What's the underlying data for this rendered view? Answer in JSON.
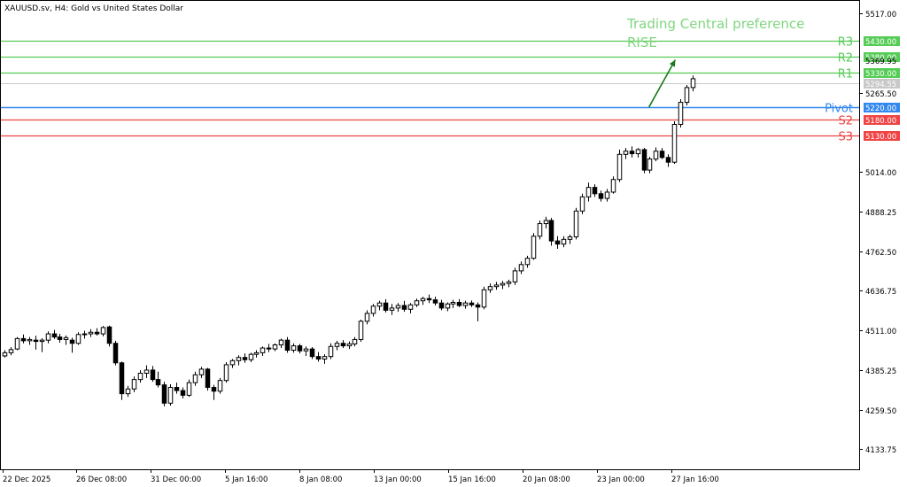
{
  "header": {
    "symbol_title": "XAUUSD.sv, H4:  Gold vs United States Dollar"
  },
  "annotation": {
    "line1": "Trading Central preference",
    "line2": "RISE",
    "color": "#7ed67e"
  },
  "colors": {
    "resistance": "#55cc55",
    "pivot": "#3388ee",
    "support": "#ee4444",
    "price_line": "#c8c8c8",
    "candle": "#000000",
    "arrow": "#1a7a1a"
  },
  "chart_data": {
    "type": "candlestick",
    "title": "XAUUSD.sv, H4:  Gold vs United States Dollar",
    "ylim": [
      4070,
      5560
    ],
    "y_ticks": [
      "5517.00",
      "5265.50",
      "5014.00",
      "4888.25",
      "4762.50",
      "4636.75",
      "4511.00",
      "4385.25",
      "4259.50",
      "4133.75"
    ],
    "x_ticks": [
      "22 Dec 2025",
      "26 Dec 08:00",
      "31 Dec 00:00",
      "5 Jan 16:00",
      "8 Jan 08:00",
      "13 Jan 00:00",
      "15 Jan 16:00",
      "20 Jan 08:00",
      "23 Jan 00:00",
      "27 Jan 16:00"
    ],
    "levels": [
      {
        "name": "R3",
        "value": 5430.0,
        "label": "5430.00",
        "kind": "resistance"
      },
      {
        "name": "R2",
        "value": 5380.0,
        "label": "5380.00",
        "kind": "resistance"
      },
      {
        "name": "R1",
        "value": 5330.0,
        "label": "5330.00",
        "kind": "resistance"
      },
      {
        "name": "Pivot",
        "value": 5220.0,
        "label": "5220.00",
        "kind": "pivot"
      },
      {
        "name": "S2",
        "value": 5180.0,
        "label": "5180.00",
        "kind": "support"
      },
      {
        "name": "S3",
        "value": 5130.0,
        "label": "5130.00",
        "kind": "support"
      }
    ],
    "current_price": {
      "value": 5294.55,
      "label": "5294.55"
    },
    "partial_tick": {
      "value": 5369.95,
      "label": "5369.95"
    },
    "arrow": {
      "from": {
        "candle": 101,
        "price": 5220
      },
      "to": {
        "candle": 106,
        "price": 5370
      }
    },
    "candles": [
      {
        "o": 4430,
        "h": 4448,
        "l": 4425,
        "c": 4440
      },
      {
        "o": 4440,
        "h": 4458,
        "l": 4432,
        "c": 4450
      },
      {
        "o": 4452,
        "h": 4490,
        "l": 4448,
        "c": 4485
      },
      {
        "o": 4485,
        "h": 4498,
        "l": 4470,
        "c": 4478
      },
      {
        "o": 4478,
        "h": 4490,
        "l": 4465,
        "c": 4482
      },
      {
        "o": 4480,
        "h": 4494,
        "l": 4450,
        "c": 4476
      },
      {
        "o": 4476,
        "h": 4486,
        "l": 4442,
        "c": 4480
      },
      {
        "o": 4480,
        "h": 4508,
        "l": 4470,
        "c": 4500
      },
      {
        "o": 4500,
        "h": 4512,
        "l": 4484,
        "c": 4490
      },
      {
        "o": 4490,
        "h": 4500,
        "l": 4472,
        "c": 4482
      },
      {
        "o": 4482,
        "h": 4495,
        "l": 4465,
        "c": 4488
      },
      {
        "o": 4480,
        "h": 4488,
        "l": 4440,
        "c": 4470
      },
      {
        "o": 4470,
        "h": 4505,
        "l": 4465,
        "c": 4498
      },
      {
        "o": 4498,
        "h": 4510,
        "l": 4485,
        "c": 4500
      },
      {
        "o": 4500,
        "h": 4515,
        "l": 4490,
        "c": 4505
      },
      {
        "o": 4505,
        "h": 4518,
        "l": 4495,
        "c": 4500
      },
      {
        "o": 4500,
        "h": 4525,
        "l": 4492,
        "c": 4520
      },
      {
        "o": 4522,
        "h": 4526,
        "l": 4460,
        "c": 4470
      },
      {
        "o": 4470,
        "h": 4478,
        "l": 4400,
        "c": 4408
      },
      {
        "o": 4408,
        "h": 4412,
        "l": 4290,
        "c": 4310
      },
      {
        "o": 4310,
        "h": 4335,
        "l": 4300,
        "c": 4325
      },
      {
        "o": 4325,
        "h": 4365,
        "l": 4315,
        "c": 4355
      },
      {
        "o": 4355,
        "h": 4385,
        "l": 4345,
        "c": 4375
      },
      {
        "o": 4375,
        "h": 4400,
        "l": 4360,
        "c": 4385
      },
      {
        "o": 4385,
        "h": 4398,
        "l": 4348,
        "c": 4355
      },
      {
        "o": 4355,
        "h": 4380,
        "l": 4330,
        "c": 4338
      },
      {
        "o": 4338,
        "h": 4348,
        "l": 4270,
        "c": 4280
      },
      {
        "o": 4280,
        "h": 4340,
        "l": 4272,
        "c": 4330
      },
      {
        "o": 4330,
        "h": 4345,
        "l": 4310,
        "c": 4320
      },
      {
        "o": 4320,
        "h": 4330,
        "l": 4295,
        "c": 4305
      },
      {
        "o": 4305,
        "h": 4355,
        "l": 4300,
        "c": 4345
      },
      {
        "o": 4345,
        "h": 4380,
        "l": 4335,
        "c": 4370
      },
      {
        "o": 4370,
        "h": 4395,
        "l": 4360,
        "c": 4388
      },
      {
        "o": 4388,
        "h": 4392,
        "l": 4320,
        "c": 4330
      },
      {
        "o": 4330,
        "h": 4338,
        "l": 4290,
        "c": 4318
      },
      {
        "o": 4318,
        "h": 4360,
        "l": 4310,
        "c": 4352
      },
      {
        "o": 4352,
        "h": 4410,
        "l": 4345,
        "c": 4402
      },
      {
        "o": 4402,
        "h": 4420,
        "l": 4392,
        "c": 4415
      },
      {
        "o": 4415,
        "h": 4432,
        "l": 4400,
        "c": 4425
      },
      {
        "o": 4425,
        "h": 4438,
        "l": 4408,
        "c": 4418
      },
      {
        "o": 4418,
        "h": 4440,
        "l": 4410,
        "c": 4435
      },
      {
        "o": 4435,
        "h": 4448,
        "l": 4425,
        "c": 4440
      },
      {
        "o": 4440,
        "h": 4460,
        "l": 4430,
        "c": 4455
      },
      {
        "o": 4455,
        "h": 4468,
        "l": 4442,
        "c": 4452
      },
      {
        "o": 4452,
        "h": 4470,
        "l": 4445,
        "c": 4465
      },
      {
        "o": 4465,
        "h": 4485,
        "l": 4455,
        "c": 4480
      },
      {
        "o": 4480,
        "h": 4490,
        "l": 4440,
        "c": 4448
      },
      {
        "o": 4448,
        "h": 4470,
        "l": 4440,
        "c": 4462
      },
      {
        "o": 4462,
        "h": 4468,
        "l": 4438,
        "c": 4446
      },
      {
        "o": 4446,
        "h": 4460,
        "l": 4430,
        "c": 4452
      },
      {
        "o": 4452,
        "h": 4458,
        "l": 4420,
        "c": 4428
      },
      {
        "o": 4428,
        "h": 4442,
        "l": 4412,
        "c": 4420
      },
      {
        "o": 4420,
        "h": 4435,
        "l": 4405,
        "c": 4428
      },
      {
        "o": 4428,
        "h": 4470,
        "l": 4420,
        "c": 4460
      },
      {
        "o": 4460,
        "h": 4478,
        "l": 4448,
        "c": 4470
      },
      {
        "o": 4470,
        "h": 4480,
        "l": 4455,
        "c": 4462
      },
      {
        "o": 4462,
        "h": 4476,
        "l": 4452,
        "c": 4468
      },
      {
        "o": 4468,
        "h": 4490,
        "l": 4460,
        "c": 4482
      },
      {
        "o": 4482,
        "h": 4545,
        "l": 4475,
        "c": 4540
      },
      {
        "o": 4540,
        "h": 4575,
        "l": 4530,
        "c": 4565
      },
      {
        "o": 4565,
        "h": 4595,
        "l": 4555,
        "c": 4588
      },
      {
        "o": 4588,
        "h": 4605,
        "l": 4575,
        "c": 4598
      },
      {
        "o": 4598,
        "h": 4610,
        "l": 4568,
        "c": 4575
      },
      {
        "o": 4575,
        "h": 4595,
        "l": 4560,
        "c": 4582
      },
      {
        "o": 4582,
        "h": 4598,
        "l": 4570,
        "c": 4590
      },
      {
        "o": 4590,
        "h": 4605,
        "l": 4570,
        "c": 4578
      },
      {
        "o": 4578,
        "h": 4598,
        "l": 4565,
        "c": 4592
      },
      {
        "o": 4592,
        "h": 4612,
        "l": 4585,
        "c": 4605
      },
      {
        "o": 4605,
        "h": 4618,
        "l": 4592,
        "c": 4612
      },
      {
        "o": 4612,
        "h": 4625,
        "l": 4598,
        "c": 4608
      },
      {
        "o": 4608,
        "h": 4618,
        "l": 4590,
        "c": 4598
      },
      {
        "o": 4598,
        "h": 4608,
        "l": 4575,
        "c": 4582
      },
      {
        "o": 4582,
        "h": 4600,
        "l": 4572,
        "c": 4595
      },
      {
        "o": 4595,
        "h": 4608,
        "l": 4582,
        "c": 4600
      },
      {
        "o": 4600,
        "h": 4610,
        "l": 4585,
        "c": 4590
      },
      {
        "o": 4590,
        "h": 4605,
        "l": 4580,
        "c": 4598
      },
      {
        "o": 4598,
        "h": 4606,
        "l": 4585,
        "c": 4592
      },
      {
        "o": 4592,
        "h": 4600,
        "l": 4540,
        "c": 4585
      },
      {
        "o": 4585,
        "h": 4650,
        "l": 4578,
        "c": 4640
      },
      {
        "o": 4640,
        "h": 4660,
        "l": 4630,
        "c": 4650
      },
      {
        "o": 4650,
        "h": 4665,
        "l": 4640,
        "c": 4655
      },
      {
        "o": 4655,
        "h": 4668,
        "l": 4642,
        "c": 4660
      },
      {
        "o": 4660,
        "h": 4672,
        "l": 4648,
        "c": 4665
      },
      {
        "o": 4665,
        "h": 4710,
        "l": 4655,
        "c": 4700
      },
      {
        "o": 4700,
        "h": 4730,
        "l": 4690,
        "c": 4720
      },
      {
        "o": 4720,
        "h": 4748,
        "l": 4710,
        "c": 4740
      },
      {
        "o": 4740,
        "h": 4820,
        "l": 4735,
        "c": 4810
      },
      {
        "o": 4810,
        "h": 4860,
        "l": 4800,
        "c": 4850
      },
      {
        "o": 4850,
        "h": 4872,
        "l": 4835,
        "c": 4860
      },
      {
        "o": 4860,
        "h": 4868,
        "l": 4780,
        "c": 4795
      },
      {
        "o": 4795,
        "h": 4810,
        "l": 4770,
        "c": 4785
      },
      {
        "o": 4785,
        "h": 4810,
        "l": 4775,
        "c": 4800
      },
      {
        "o": 4800,
        "h": 4815,
        "l": 4785,
        "c": 4808
      },
      {
        "o": 4808,
        "h": 4900,
        "l": 4800,
        "c": 4890
      },
      {
        "o": 4890,
        "h": 4945,
        "l": 4880,
        "c": 4935
      },
      {
        "o": 4935,
        "h": 4980,
        "l": 4920,
        "c": 4965
      },
      {
        "o": 4965,
        "h": 4975,
        "l": 4935,
        "c": 4945
      },
      {
        "o": 4945,
        "h": 4955,
        "l": 4920,
        "c": 4930
      },
      {
        "o": 4930,
        "h": 4960,
        "l": 4920,
        "c": 4950
      },
      {
        "o": 4950,
        "h": 5000,
        "l": 4945,
        "c": 4990
      },
      {
        "o": 4990,
        "h": 5085,
        "l": 4982,
        "c": 5070
      },
      {
        "o": 5070,
        "h": 5090,
        "l": 5055,
        "c": 5080
      },
      {
        "o": 5080,
        "h": 5095,
        "l": 5060,
        "c": 5072
      },
      {
        "o": 5072,
        "h": 5090,
        "l": 5060,
        "c": 5085
      },
      {
        "o": 5085,
        "h": 5090,
        "l": 5010,
        "c": 5020
      },
      {
        "o": 5020,
        "h": 5062,
        "l": 5010,
        "c": 5055
      },
      {
        "o": 5055,
        "h": 5092,
        "l": 5048,
        "c": 5080
      },
      {
        "o": 5080,
        "h": 5090,
        "l": 5055,
        "c": 5060
      },
      {
        "o": 5060,
        "h": 5070,
        "l": 5030,
        "c": 5045
      },
      {
        "o": 5045,
        "h": 5175,
        "l": 5040,
        "c": 5165
      },
      {
        "o": 5165,
        "h": 5245,
        "l": 5155,
        "c": 5235
      },
      {
        "o": 5235,
        "h": 5290,
        "l": 5225,
        "c": 5282
      },
      {
        "o": 5282,
        "h": 5320,
        "l": 5270,
        "c": 5310
      }
    ]
  }
}
